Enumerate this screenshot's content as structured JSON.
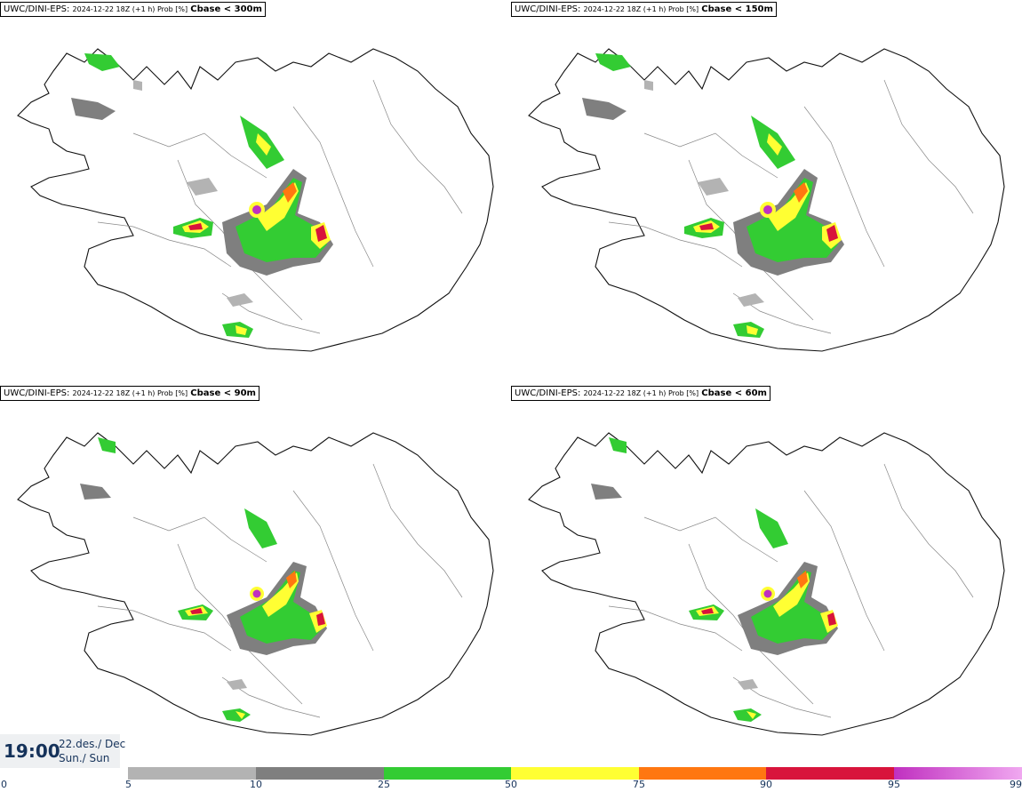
{
  "panels": [
    {
      "prefix": "UWC/DINI-EPS",
      "meta": "2024-12-22 18Z (+1 h) Prob [%]",
      "level": "Cbase < 300m"
    },
    {
      "prefix": "UWC/DINI-EPS",
      "meta": "2024-12-22 18Z (+1 h) Prob [%]",
      "level": "Cbase < 150m"
    },
    {
      "prefix": "UWC/DINI-EPS",
      "meta": "2024-12-22 18Z (+1 h) Prob [%]",
      "level": "Cbase < 90m"
    },
    {
      "prefix": "UWC/DINI-EPS",
      "meta": "2024-12-22 18Z (+1 h) Prob [%]",
      "level": "Cbase < 60m"
    }
  ],
  "valid_time": {
    "time": "19:00",
    "date_line1": "22.des./ Dec",
    "date_line2": "Sun./ Sun"
  },
  "colorbar": {
    "ticks": [
      "0",
      "5",
      "10",
      "25",
      "50",
      "75",
      "90",
      "95",
      "99"
    ],
    "colors": [
      "#b3b3b3",
      "#7f7f7f",
      "#33cc33",
      "#ffff33",
      "#ff7711",
      "#d8143c",
      "#c030c0",
      "#f0a8f0"
    ]
  }
}
